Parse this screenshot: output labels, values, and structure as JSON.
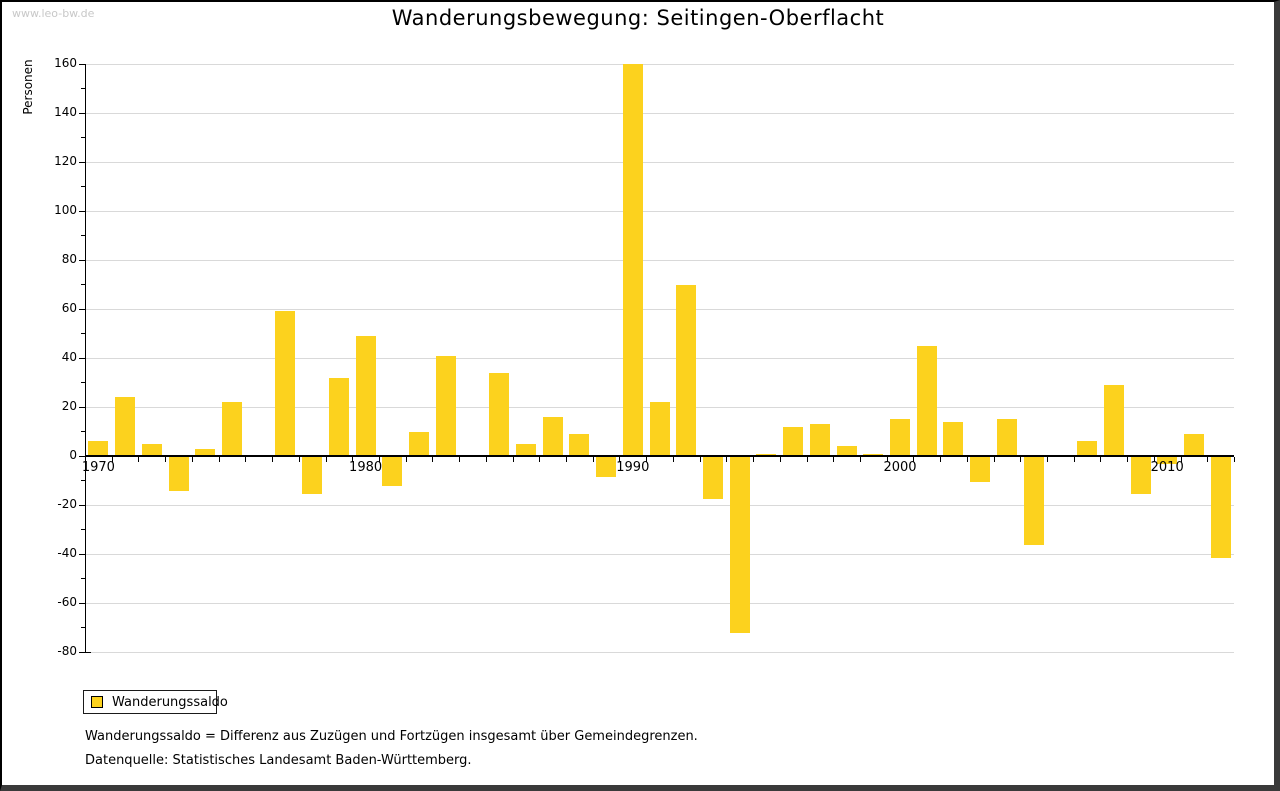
{
  "watermark": "www.leo-bw.de",
  "title": "Wanderungsbewegung: Seitingen-Oberflacht",
  "y_axis_label": "Personen",
  "legend": {
    "label": "Wanderungssaldo"
  },
  "footnotes": [
    "Wanderungssaldo = Differenz aus Zuzügen und Fortzügen insgesamt über Gemeindegrenzen.",
    "Datenquelle: Statistisches Landesamt Baden-Württemberg."
  ],
  "colors": {
    "bar": "#FCD21E",
    "grid": "#D9D9D9",
    "axis": "#000000",
    "watermark": "#C8C8C8"
  },
  "chart_data": {
    "type": "bar",
    "title": "Wanderungsbewegung: Seitingen-Oberflacht",
    "xlabel": "",
    "ylabel": "Personen",
    "ylim": [
      -80,
      160
    ],
    "ytick_step": 20,
    "grid": true,
    "legend_position": "bottom-left",
    "xticks_labeled": [
      1970,
      1980,
      1990,
      2000,
      2010
    ],
    "years": [
      1970,
      1971,
      1972,
      1973,
      1974,
      1975,
      1976,
      1977,
      1978,
      1979,
      1980,
      1981,
      1982,
      1983,
      1984,
      1985,
      1986,
      1987,
      1988,
      1989,
      1990,
      1991,
      1992,
      1993,
      1994,
      1995,
      1996,
      1997,
      1998,
      1999,
      2000,
      2001,
      2002,
      2003,
      2004,
      2005,
      2006,
      2007,
      2008,
      2009,
      2010,
      2011,
      2012
    ],
    "series": [
      {
        "name": "Wanderungssaldo",
        "values": [
          6,
          24,
          5,
          -14,
          3,
          22,
          0,
          59,
          -15,
          32,
          49,
          -12,
          10,
          41,
          0,
          34,
          5,
          16,
          9,
          -8,
          160,
          22,
          70,
          -17,
          -72,
          1,
          12,
          13,
          4,
          1,
          15,
          45,
          14,
          -10,
          15,
          -36,
          0,
          6,
          29,
          -15,
          -3,
          9,
          -41
        ]
      }
    ]
  }
}
